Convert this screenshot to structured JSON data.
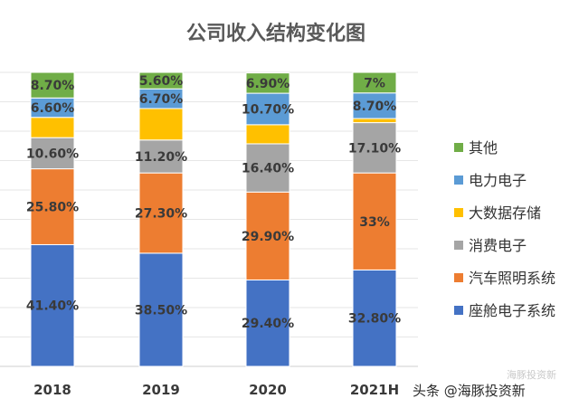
{
  "chart_data": {
    "type": "bar",
    "stacked": true,
    "title": "公司收入结构变化图",
    "categories": [
      "2018",
      "2019",
      "2020",
      "2021H"
    ],
    "ylim": [
      0,
      100
    ],
    "grid": true,
    "legend_position": "right",
    "series": [
      {
        "name": "座舱电子系统",
        "color": "#4472c4",
        "values": [
          41.4,
          38.5,
          29.4,
          32.8
        ],
        "labels": [
          "41.40%",
          "38.50%",
          "29.40%",
          "32.80%"
        ]
      },
      {
        "name": "汽车照明系统",
        "color": "#ed7d31",
        "values": [
          25.8,
          27.3,
          29.9,
          33.0
        ],
        "labels": [
          "25.80%",
          "27.30%",
          "29.90%",
          "33%"
        ]
      },
      {
        "name": "消费电子",
        "color": "#a5a5a5",
        "values": [
          10.6,
          11.2,
          16.4,
          17.1
        ],
        "labels": [
          "10.60%",
          "11.20%",
          "16.40%",
          "17.10%"
        ]
      },
      {
        "name": "大数据存储",
        "color": "#ffc000",
        "values": [
          6.9,
          10.7,
          6.5,
          1.4
        ],
        "labels": [
          "",
          "",
          "",
          ""
        ]
      },
      {
        "name": "电力电子",
        "color": "#5b9bd5",
        "values": [
          6.6,
          6.7,
          10.7,
          8.7
        ],
        "labels": [
          "6.60%",
          "6.70%",
          "10.70%",
          "8.70%"
        ]
      },
      {
        "name": "其他",
        "color": "#70ad47",
        "values": [
          8.7,
          5.6,
          6.9,
          7.0
        ],
        "labels": [
          "8.70%",
          "5.60%",
          "6.90%",
          "7%"
        ]
      }
    ]
  },
  "watermark": {
    "text": "头条 @海豚投资新",
    "faint_text": "海豚投资新"
  }
}
